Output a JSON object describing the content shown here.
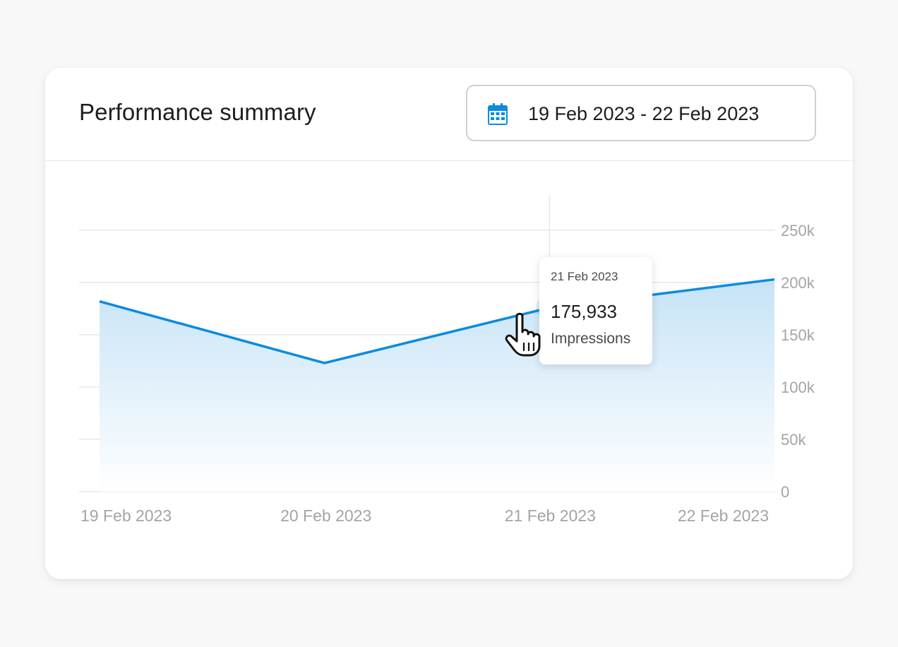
{
  "header": {
    "title": "Performance summary",
    "date_range": "19 Feb 2023 - 22 Feb 2023",
    "date_icon": "calendar-icon"
  },
  "colors": {
    "accent": "#0a8be0",
    "area_top": "#c6e3f6",
    "area_bottom": "#ffffff",
    "grid": "#e6e7ea",
    "tick": "#a3a4a8"
  },
  "chart_data": {
    "type": "area",
    "x": [
      "19 Feb 2023",
      "20 Feb 2023",
      "21 Feb 2023",
      "22 Feb 2023"
    ],
    "series": [
      {
        "values": [
          182000,
          123000,
          175933,
          203000
        ]
      }
    ],
    "yticks": [
      "0",
      "50k",
      "100k",
      "150k",
      "200k",
      "250k"
    ],
    "ylim": [
      0,
      250000
    ],
    "grid": true,
    "y_axis_position": "right",
    "highlight": {
      "index": 2,
      "date": "21 Feb 2023",
      "value": "175,933",
      "label": "Impressions"
    }
  }
}
